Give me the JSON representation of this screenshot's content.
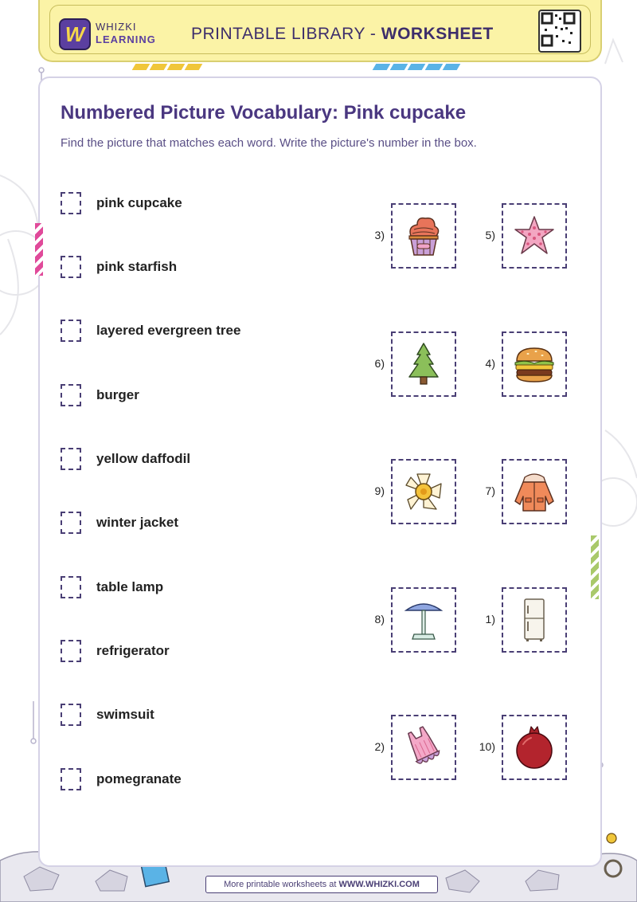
{
  "brand": {
    "logo_letter": "W",
    "name_top": "WHIZKI",
    "name_bottom": "LEARNING"
  },
  "header": {
    "title_prefix": "PRINTABLE LIBRARY - ",
    "title_bold": "WORKSHEET"
  },
  "worksheet": {
    "title": "Numbered Picture Vocabulary: Pink cupcake",
    "instructions": "Find the picture that matches each word. Write the picture's number in the box."
  },
  "words": [
    {
      "label": "pink cupcake"
    },
    {
      "label": "pink starfish"
    },
    {
      "label": "layered evergreen tree"
    },
    {
      "label": "burger"
    },
    {
      "label": "yellow daffodil"
    },
    {
      "label": "winter jacket"
    },
    {
      "label": "table lamp"
    },
    {
      "label": "refrigerator"
    },
    {
      "label": "swimsuit"
    },
    {
      "label": "pomegranate"
    }
  ],
  "pictures": [
    {
      "number": "3)",
      "icon": "cupcake-icon"
    },
    {
      "number": "5)",
      "icon": "starfish-icon"
    },
    {
      "number": "6)",
      "icon": "evergreen-tree-icon"
    },
    {
      "number": "4)",
      "icon": "burger-icon"
    },
    {
      "number": "9)",
      "icon": "daffodil-icon"
    },
    {
      "number": "7)",
      "icon": "winter-jacket-icon"
    },
    {
      "number": "8)",
      "icon": "table-lamp-icon"
    },
    {
      "number": "1)",
      "icon": "refrigerator-icon"
    },
    {
      "number": "2)",
      "icon": "swimsuit-icon"
    },
    {
      "number": "10)",
      "icon": "pomegranate-icon"
    }
  ],
  "footer": {
    "prefix": "More printable worksheets at ",
    "site": "WWW.WHIZKI.COM"
  },
  "colors": {
    "header_bg": "#fbf3a6",
    "title": "#4a3780",
    "brand_purple": "#5b3fa0",
    "accent_pink": "#e04a9a",
    "accent_green": "#a9c96a"
  }
}
